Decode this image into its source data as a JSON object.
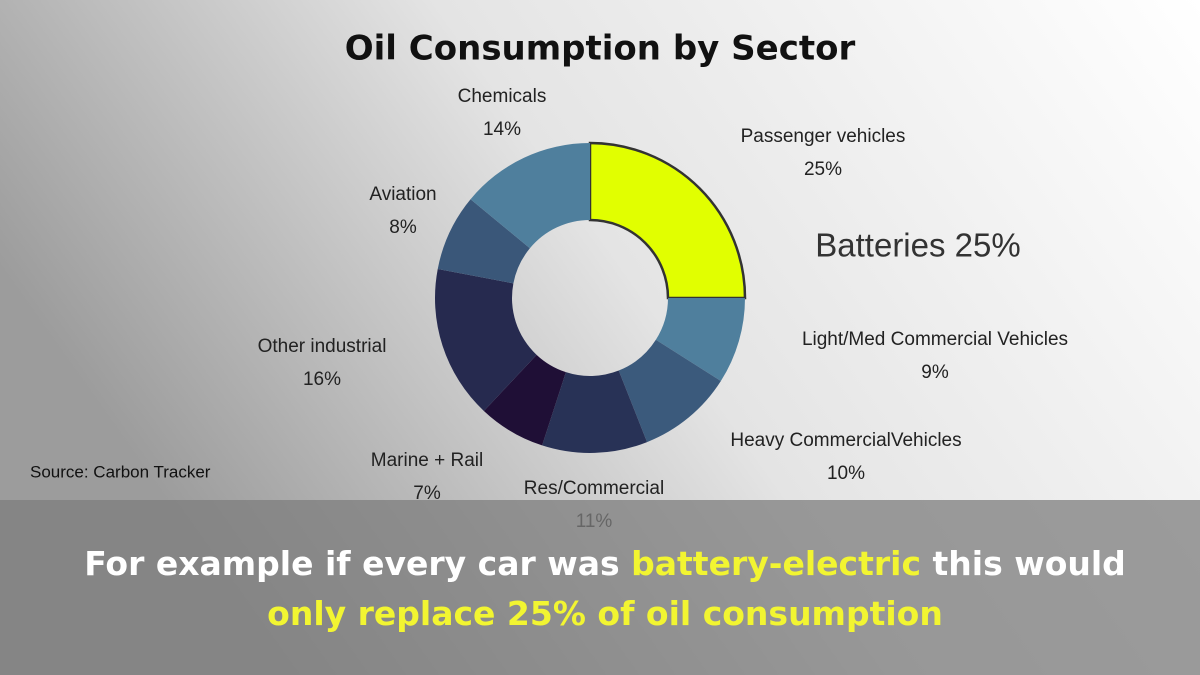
{
  "chart_data": {
    "type": "donut",
    "title": "Oil Consumption by Sector",
    "categories": [
      "Passenger vehicles",
      "Light/Med Commercial Vehicles",
      "Heavy CommercialVehicles",
      "Res/Commercial",
      "Marine + Rail",
      "Other industrial",
      "Aviation",
      "Chemicals"
    ],
    "values": [
      25,
      9,
      10,
      11,
      7,
      16,
      8,
      14
    ],
    "value_labels": [
      "25%",
      "9%",
      "10%",
      "11%",
      "7%",
      "16%",
      "8%",
      "14%"
    ],
    "colors": [
      "#e1ff00",
      "#4f7f9d",
      "#3b5a7c",
      "#283256",
      "#1f0f36",
      "#262a4f",
      "#3a5779",
      "#4f7f9d"
    ],
    "annotation": "Batteries 25%",
    "source": "Source: Carbon Tracker"
  },
  "caption": {
    "lines": [
      [
        {
          "text": "For example if every car was "
        },
        {
          "text": "battery-electric",
          "color": "#f2f531"
        },
        {
          "text": " this would"
        }
      ],
      [
        {
          "text": "only replace 25% of oil consumption",
          "color": "#f2f531"
        }
      ]
    ]
  }
}
